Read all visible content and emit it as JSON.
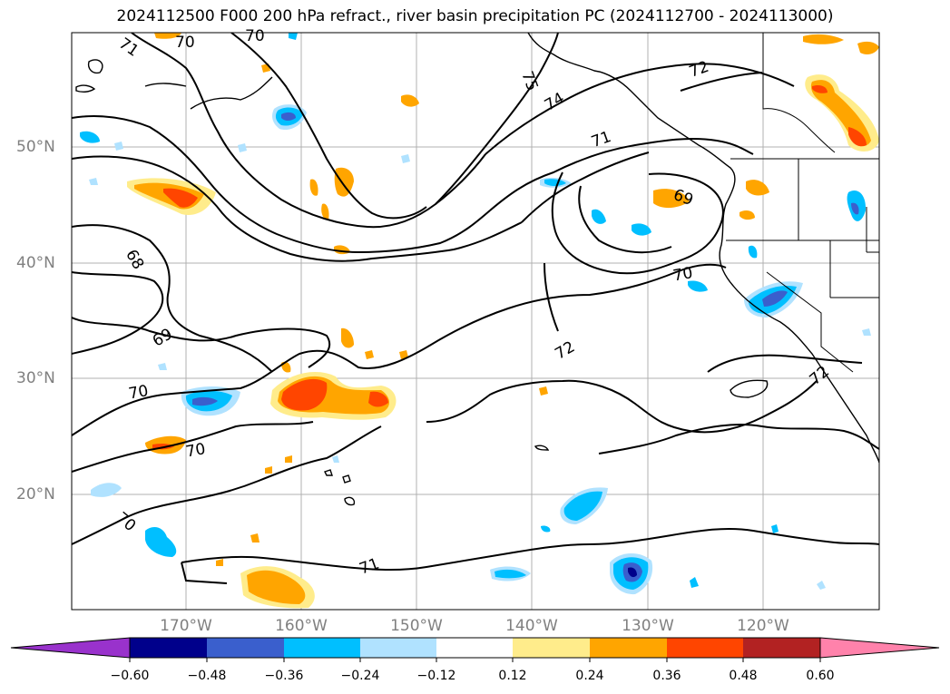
{
  "title": "2024112500 F000 200 hPa refract., river basin precipitation PC (2024112700 - 2024113000)",
  "lat_labels": [
    "50°N",
    "40°N",
    "30°N",
    "20°N"
  ],
  "lon_labels": [
    "170°W",
    "160°W",
    "150°W",
    "140°W",
    "130°W",
    "120°W"
  ],
  "contour_labels": [
    "70",
    "71",
    "70",
    "75",
    "74",
    "72",
    "71",
    "69",
    "68",
    "69",
    "70",
    "72",
    "70",
    "70",
    "71",
    "70",
    "72"
  ],
  "colorbar": {
    "ticks": [
      "−0.60",
      "−0.48",
      "−0.36",
      "−0.24",
      "−0.12",
      "0.12",
      "0.24",
      "0.36",
      "0.48",
      "0.60"
    ],
    "colors": [
      "#9932cc",
      "#00008b",
      "#3a5fcd",
      "#00bfff",
      "#b0e2ff",
      "#ffffff",
      "#ffec8b",
      "#ffa500",
      "#ff4500",
      "#b22222",
      "#ff82ab"
    ]
  }
}
